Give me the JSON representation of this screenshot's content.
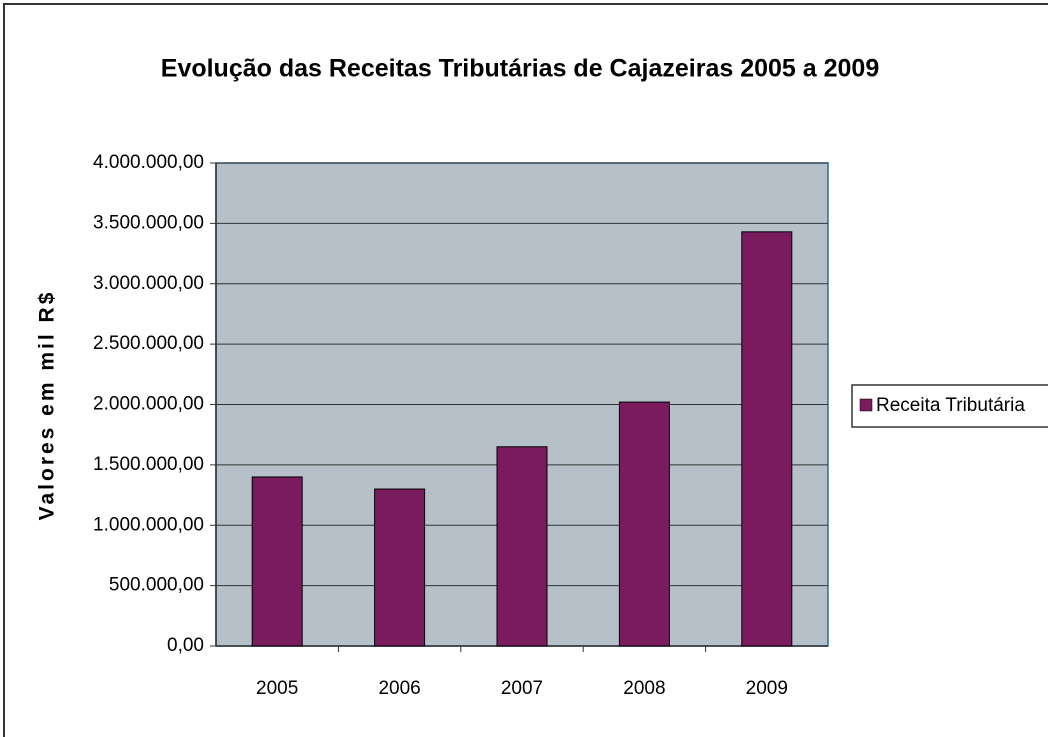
{
  "chart_data": {
    "type": "bar",
    "title": "Evolução das Receitas Tributárias de Cajazeiras 2005 a 2009",
    "y_label": "Valores em mil R$",
    "categories": [
      "2005",
      "2006",
      "2007",
      "2008",
      "2009"
    ],
    "series": [
      {
        "name": "Receita Tributária",
        "color": "#7a1b5e",
        "values": [
          1400000,
          1300000,
          1650000,
          2020000,
          3430000
        ]
      }
    ],
    "ylim": [
      0,
      4000000
    ],
    "yticks": [
      {
        "value": 0,
        "label": "0,00"
      },
      {
        "value": 500000,
        "label": "500.000,00"
      },
      {
        "value": 1000000,
        "label": "1.000.000,00"
      },
      {
        "value": 1500000,
        "label": "1.500.000,00"
      },
      {
        "value": 2000000,
        "label": "2.000.000,00"
      },
      {
        "value": 2500000,
        "label": "2.500.000,00"
      },
      {
        "value": 3000000,
        "label": "3.000.000,00"
      },
      {
        "value": 3500000,
        "label": "3.500.000,00"
      },
      {
        "value": 4000000,
        "label": "4.000.000,00"
      }
    ],
    "grid": true,
    "legend": "right"
  }
}
